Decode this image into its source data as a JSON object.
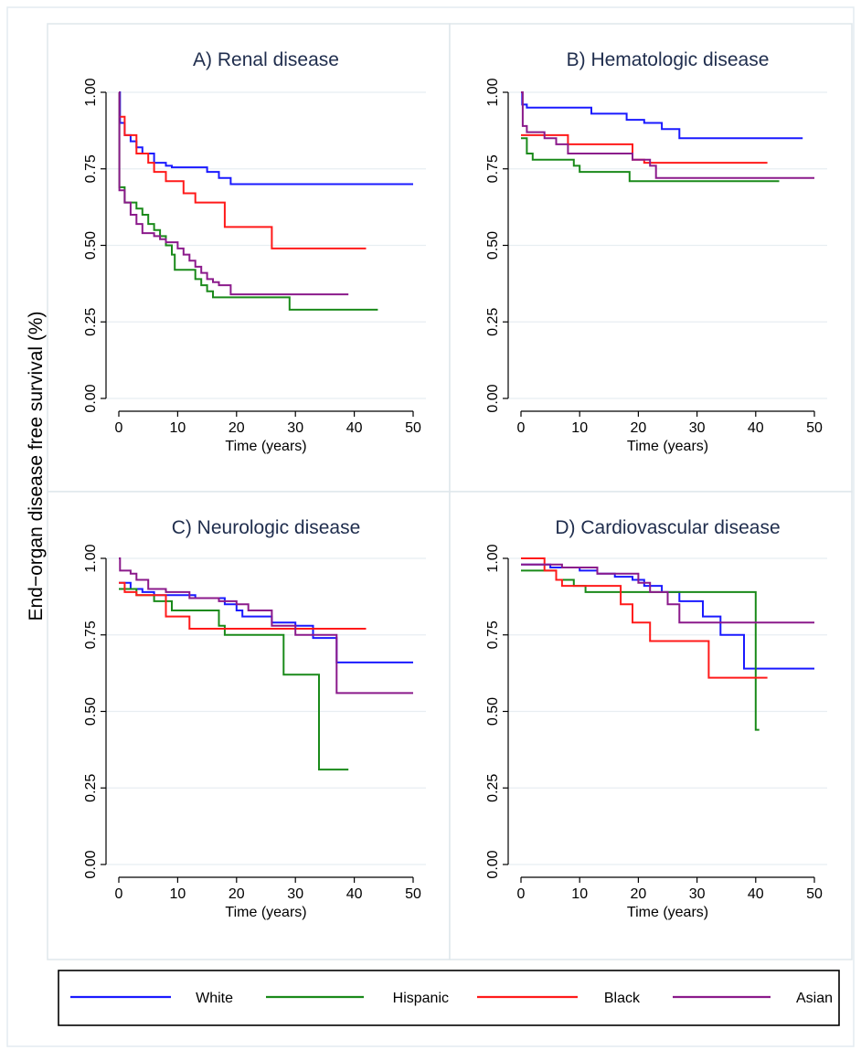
{
  "figure": {
    "ylabel": "End−organ disease free survival (%)"
  },
  "legend": [
    {
      "name": "White",
      "color": "#1a1aff"
    },
    {
      "name": "Hispanic",
      "color": "#1a8a1a"
    },
    {
      "name": "Black",
      "color": "#ff1a1a"
    },
    {
      "name": "Asian",
      "color": "#8b1a8b"
    }
  ],
  "chart_data": [
    {
      "type": "line",
      "title": "A) Renal disease",
      "xlabel": "Time (years)",
      "ylabel": "",
      "xlim": [
        0,
        50
      ],
      "ylim": [
        0,
        1
      ],
      "xticks": [
        "0",
        "10",
        "20",
        "30",
        "40",
        "50"
      ],
      "yticks": [
        "0.00",
        "0.25",
        "0.50",
        "0.75",
        "1.00"
      ],
      "grid": true,
      "series": [
        {
          "name": "White",
          "color": "#1a1aff",
          "step": [
            [
              0,
              1.0
            ],
            [
              0.2,
              0.9
            ],
            [
              1,
              0.86
            ],
            [
              2,
              0.84
            ],
            [
              3,
              0.82
            ],
            [
              4,
              0.8
            ],
            [
              6,
              0.77
            ],
            [
              8,
              0.76
            ],
            [
              9,
              0.755
            ],
            [
              15,
              0.74
            ],
            [
              17,
              0.72
            ],
            [
              19,
              0.7
            ],
            [
              50,
              0.7
            ]
          ]
        },
        {
          "name": "Hispanic",
          "color": "#1a8a1a",
          "step": [
            [
              0,
              1.0
            ],
            [
              0.1,
              0.69
            ],
            [
              1,
              0.64
            ],
            [
              3,
              0.62
            ],
            [
              4,
              0.6
            ],
            [
              5,
              0.57
            ],
            [
              6,
              0.55
            ],
            [
              7,
              0.53
            ],
            [
              8,
              0.5
            ],
            [
              9,
              0.47
            ],
            [
              9.5,
              0.42
            ],
            [
              13,
              0.39
            ],
            [
              14,
              0.37
            ],
            [
              15,
              0.35
            ],
            [
              16,
              0.33
            ],
            [
              29,
              0.29
            ],
            [
              44,
              0.29
            ]
          ]
        },
        {
          "name": "Black",
          "color": "#ff1a1a",
          "step": [
            [
              0,
              0.92
            ],
            [
              1,
              0.86
            ],
            [
              3,
              0.8
            ],
            [
              5,
              0.77
            ],
            [
              6,
              0.74
            ],
            [
              8,
              0.71
            ],
            [
              11,
              0.67
            ],
            [
              13,
              0.64
            ],
            [
              18,
              0.56
            ],
            [
              26,
              0.49
            ],
            [
              42,
              0.49
            ]
          ]
        },
        {
          "name": "Asian",
          "color": "#8b1a8b",
          "step": [
            [
              0,
              1.0
            ],
            [
              0.1,
              0.68
            ],
            [
              1,
              0.64
            ],
            [
              2,
              0.6
            ],
            [
              3,
              0.57
            ],
            [
              4,
              0.54
            ],
            [
              6,
              0.53
            ],
            [
              7,
              0.52
            ],
            [
              8,
              0.51
            ],
            [
              10,
              0.49
            ],
            [
              11,
              0.47
            ],
            [
              12,
              0.45
            ],
            [
              13,
              0.43
            ],
            [
              14,
              0.41
            ],
            [
              15,
              0.39
            ],
            [
              16,
              0.38
            ],
            [
              17,
              0.37
            ],
            [
              19,
              0.34
            ],
            [
              39,
              0.34
            ]
          ]
        }
      ]
    },
    {
      "type": "line",
      "title": "B) Hematologic disease",
      "xlabel": "Time (years)",
      "ylabel": "",
      "xlim": [
        0,
        50
      ],
      "ylim": [
        0,
        1
      ],
      "xticks": [
        "0",
        "10",
        "20",
        "30",
        "40",
        "50"
      ],
      "yticks": [
        "0.00",
        "0.25",
        "0.50",
        "0.75",
        "1.00"
      ],
      "grid": true,
      "series": [
        {
          "name": "White",
          "color": "#1a1aff",
          "step": [
            [
              0,
              1.0
            ],
            [
              0.2,
              0.96
            ],
            [
              1,
              0.95
            ],
            [
              12,
              0.93
            ],
            [
              18,
              0.91
            ],
            [
              21,
              0.9
            ],
            [
              24,
              0.88
            ],
            [
              27,
              0.85
            ],
            [
              48,
              0.85
            ]
          ]
        },
        {
          "name": "Hispanic",
          "color": "#1a8a1a",
          "step": [
            [
              0,
              0.85
            ],
            [
              1,
              0.8
            ],
            [
              2,
              0.78
            ],
            [
              9,
              0.76
            ],
            [
              10,
              0.74
            ],
            [
              18.5,
              0.71
            ],
            [
              44,
              0.71
            ]
          ]
        },
        {
          "name": "Black",
          "color": "#ff1a1a",
          "step": [
            [
              0,
              0.86
            ],
            [
              8,
              0.83
            ],
            [
              19,
              0.78
            ],
            [
              21,
              0.77
            ],
            [
              42,
              0.77
            ]
          ]
        },
        {
          "name": "Asian",
          "color": "#8b1a8b",
          "step": [
            [
              0,
              1.0
            ],
            [
              0.3,
              0.89
            ],
            [
              1,
              0.87
            ],
            [
              4,
              0.85
            ],
            [
              6,
              0.83
            ],
            [
              8,
              0.8
            ],
            [
              19,
              0.78
            ],
            [
              22,
              0.76
            ],
            [
              23,
              0.72
            ],
            [
              50,
              0.72
            ]
          ]
        }
      ]
    },
    {
      "type": "line",
      "title": "C) Neurologic disease",
      "xlabel": "Time (years)",
      "ylabel": "",
      "xlim": [
        0,
        50
      ],
      "ylim": [
        0,
        1
      ],
      "xticks": [
        "0",
        "10",
        "20",
        "30",
        "40",
        "50"
      ],
      "yticks": [
        "0.00",
        "0.25",
        "0.50",
        "0.75",
        "1.00"
      ],
      "grid": true,
      "series": [
        {
          "name": "White",
          "color": "#1a1aff",
          "step": [
            [
              0,
              0.92
            ],
            [
              2,
              0.9
            ],
            [
              4,
              0.89
            ],
            [
              6,
              0.88
            ],
            [
              13,
              0.87
            ],
            [
              18,
              0.85
            ],
            [
              20,
              0.83
            ],
            [
              21,
              0.81
            ],
            [
              26,
              0.79
            ],
            [
              30,
              0.78
            ],
            [
              33,
              0.74
            ],
            [
              37,
              0.66
            ],
            [
              50,
              0.66
            ]
          ]
        },
        {
          "name": "Hispanic",
          "color": "#1a8a1a",
          "step": [
            [
              0,
              0.9
            ],
            [
              3,
              0.88
            ],
            [
              6,
              0.86
            ],
            [
              9,
              0.83
            ],
            [
              17,
              0.78
            ],
            [
              18,
              0.75
            ],
            [
              28,
              0.62
            ],
            [
              34,
              0.31
            ],
            [
              39,
              0.31
            ]
          ]
        },
        {
          "name": "Black",
          "color": "#ff1a1a",
          "step": [
            [
              0,
              0.92
            ],
            [
              1,
              0.89
            ],
            [
              3,
              0.88
            ],
            [
              8,
              0.81
            ],
            [
              12,
              0.77
            ],
            [
              42,
              0.77
            ]
          ]
        },
        {
          "name": "Asian",
          "color": "#8b1a8b",
          "step": [
            [
              0,
              1.0
            ],
            [
              0.2,
              0.96
            ],
            [
              2,
              0.95
            ],
            [
              3,
              0.93
            ],
            [
              5,
              0.9
            ],
            [
              8,
              0.89
            ],
            [
              12,
              0.87
            ],
            [
              17,
              0.86
            ],
            [
              20,
              0.85
            ],
            [
              22,
              0.83
            ],
            [
              26,
              0.78
            ],
            [
              30,
              0.75
            ],
            [
              37,
              0.56
            ],
            [
              50,
              0.56
            ]
          ]
        }
      ]
    },
    {
      "type": "line",
      "title": "D) Cardiovascular disease",
      "xlabel": "Time (years)",
      "ylabel": "",
      "xlim": [
        0,
        50
      ],
      "ylim": [
        0,
        1
      ],
      "xticks": [
        "0",
        "10",
        "20",
        "30",
        "40",
        "50"
      ],
      "yticks": [
        "0.00",
        "0.25",
        "0.50",
        "0.75",
        "1.00"
      ],
      "grid": true,
      "series": [
        {
          "name": "White",
          "color": "#1a1aff",
          "step": [
            [
              0,
              0.98
            ],
            [
              5,
              0.97
            ],
            [
              10,
              0.96
            ],
            [
              13,
              0.95
            ],
            [
              16,
              0.94
            ],
            [
              19,
              0.93
            ],
            [
              21,
              0.91
            ],
            [
              24,
              0.89
            ],
            [
              27,
              0.86
            ],
            [
              31,
              0.81
            ],
            [
              34,
              0.75
            ],
            [
              38,
              0.64
            ],
            [
              50,
              0.64
            ]
          ]
        },
        {
          "name": "Hispanic",
          "color": "#1a8a1a",
          "step": [
            [
              0,
              0.96
            ],
            [
              6,
              0.93
            ],
            [
              9,
              0.91
            ],
            [
              11,
              0.89
            ],
            [
              18,
              0.89
            ],
            [
              40,
              0.44
            ],
            [
              40.6,
              0.44
            ]
          ]
        },
        {
          "name": "Black",
          "color": "#ff1a1a",
          "step": [
            [
              0,
              1.0
            ],
            [
              4,
              0.96
            ],
            [
              6,
              0.93
            ],
            [
              7,
              0.91
            ],
            [
              17,
              0.85
            ],
            [
              19,
              0.79
            ],
            [
              22,
              0.73
            ],
            [
              32,
              0.61
            ],
            [
              42,
              0.61
            ]
          ]
        },
        {
          "name": "Asian",
          "color": "#8b1a8b",
          "step": [
            [
              0,
              0.98
            ],
            [
              7,
              0.97
            ],
            [
              13,
              0.95
            ],
            [
              20,
              0.92
            ],
            [
              22,
              0.89
            ],
            [
              25,
              0.85
            ],
            [
              27,
              0.79
            ],
            [
              50,
              0.79
            ]
          ]
        }
      ]
    }
  ]
}
